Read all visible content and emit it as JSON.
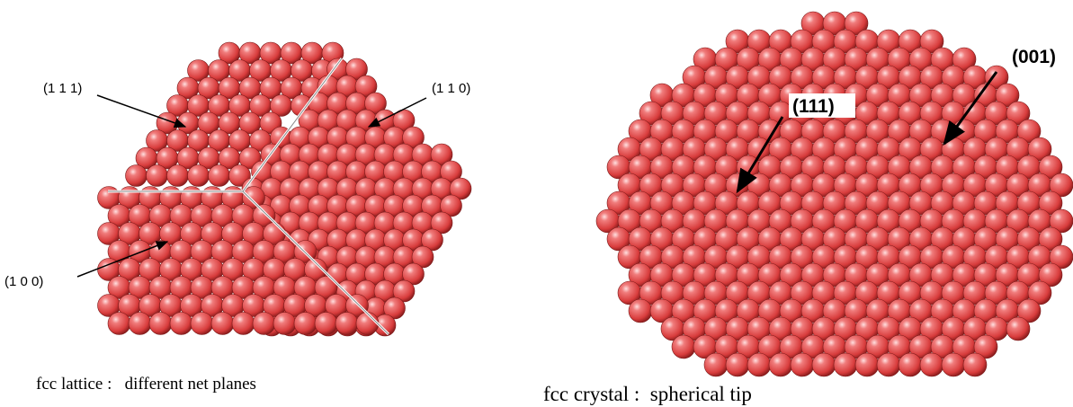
{
  "left": {
    "labels": [
      "(1 1 1)",
      "(1 1 0)",
      "(1 0 0)"
    ],
    "caption": "fcc lattice :   different net planes"
  },
  "right": {
    "labels": [
      "(111)",
      "(001)"
    ],
    "caption": "fcc crystal :  spherical tip"
  }
}
